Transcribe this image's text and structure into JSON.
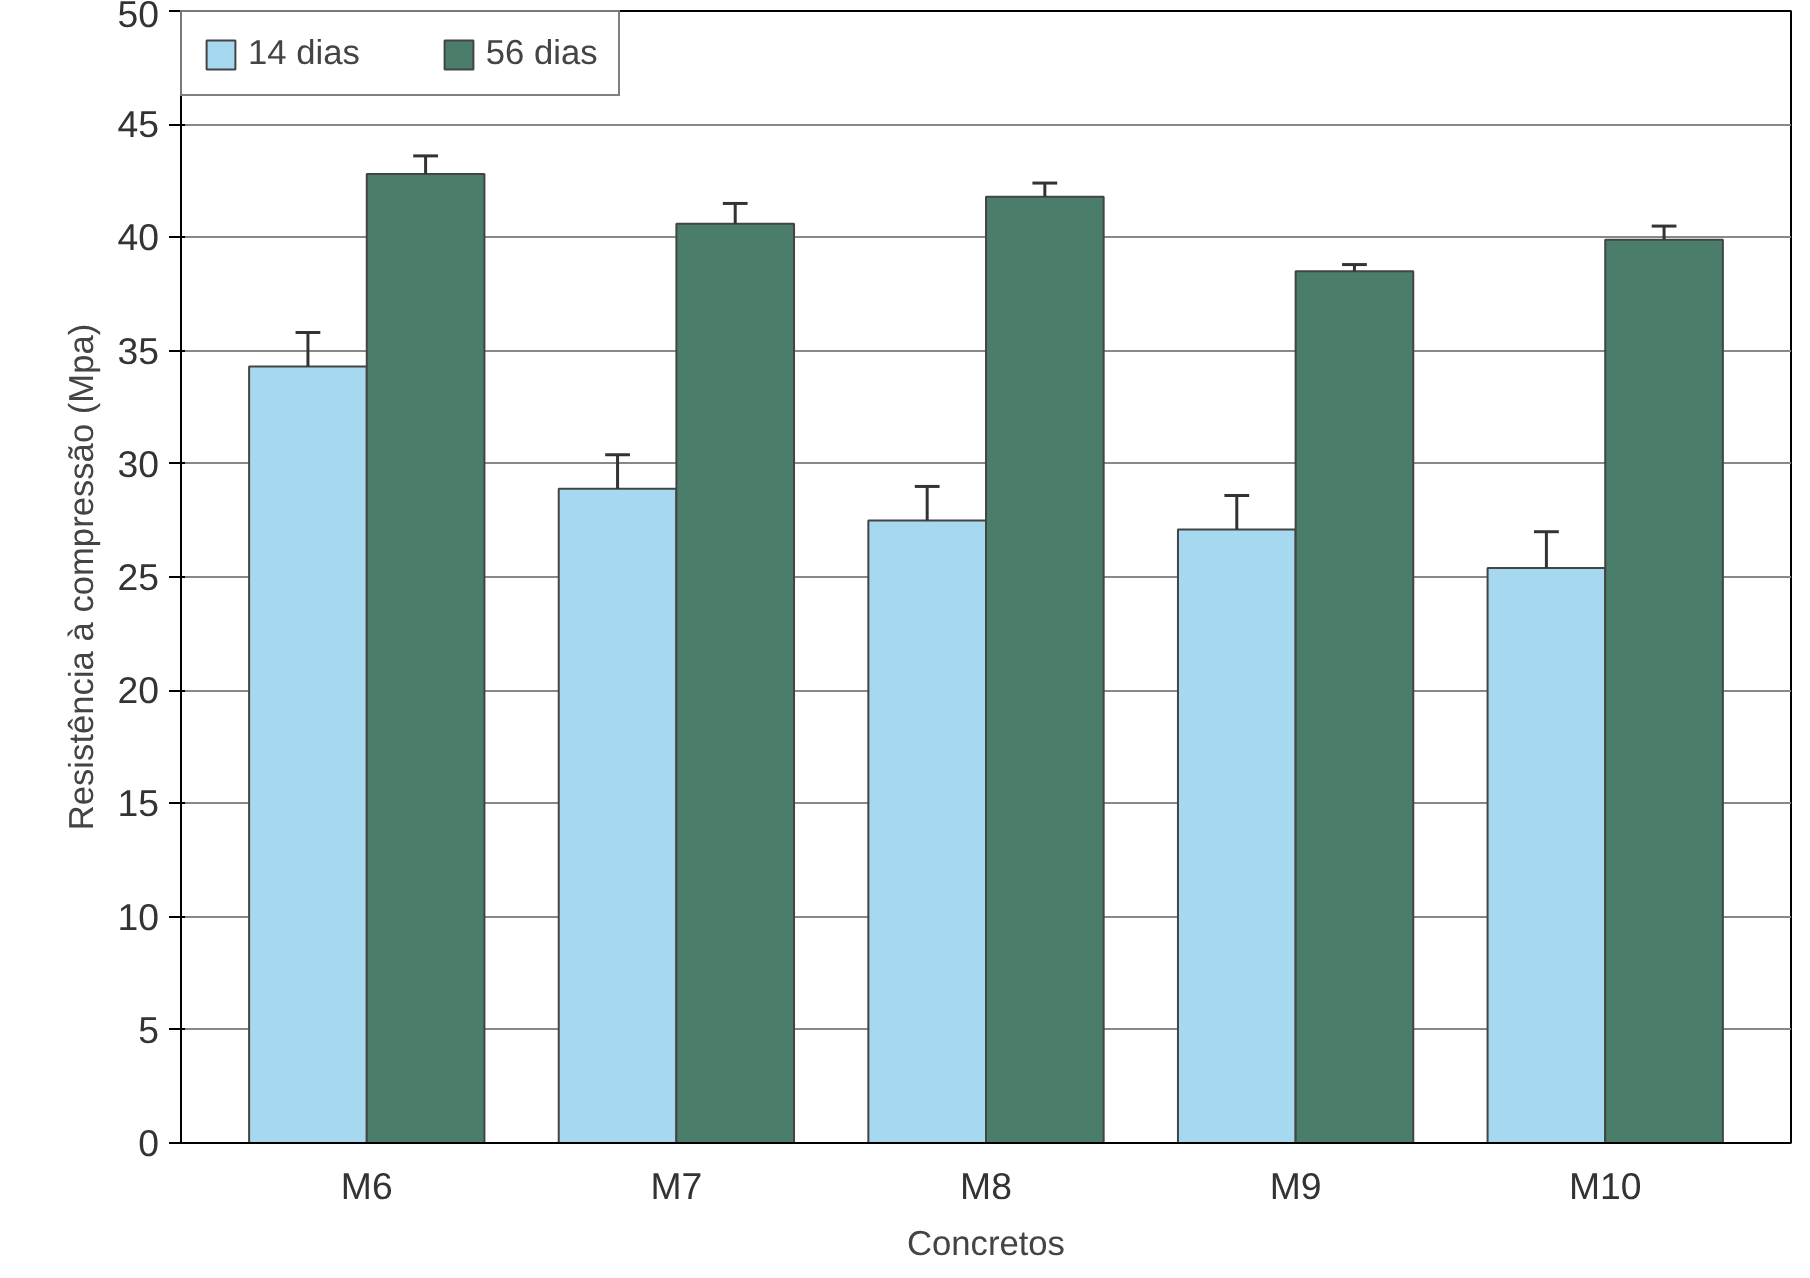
{
  "chart_data": {
    "type": "bar",
    "xlabel": "Concretos",
    "ylabel": "Resistência à compressão (Mpa)",
    "categories": [
      "M6",
      "M7",
      "M8",
      "M9",
      "M10"
    ],
    "series": [
      {
        "name": "14 dias",
        "color": "#a6d8f0",
        "values": [
          34.3,
          28.9,
          27.5,
          27.1,
          25.4
        ],
        "errors": [
          [
            34.3,
            35.8
          ],
          [
            28.9,
            30.4
          ],
          [
            27.5,
            29.0
          ],
          [
            27.1,
            28.6
          ],
          [
            25.4,
            27.0
          ]
        ]
      },
      {
        "name": "56 dias",
        "color": "#4a7d6a",
        "values": [
          42.8,
          40.6,
          41.8,
          38.5,
          39.9
        ],
        "errors": [
          [
            42.8,
            43.6
          ],
          [
            40.6,
            41.5
          ],
          [
            41.8,
            42.4
          ],
          [
            38.5,
            38.8
          ],
          [
            39.9,
            40.5
          ]
        ]
      }
    ],
    "ylim": [
      0,
      50
    ],
    "yticks": [
      0,
      5,
      10,
      15,
      20,
      25,
      30,
      35,
      40,
      45,
      50
    ],
    "grid": "y",
    "legend": "top left"
  }
}
